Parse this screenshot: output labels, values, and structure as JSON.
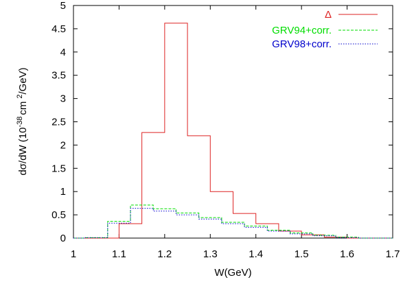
{
  "chart_data": {
    "type": "line",
    "step": true,
    "xlabel": "W(GeV)",
    "ylabel": {
      "prefix": "dσ/dW (10",
      "exp1": "-38",
      "mid": "cm",
      "exp2": "2",
      "suffix": "/GeV)"
    },
    "xlim": [
      1.0,
      1.7
    ],
    "ylim": [
      0,
      5
    ],
    "xticks": [
      "1",
      "1.1",
      "1.2",
      "1.3",
      "1.4",
      "1.5",
      "1.6",
      "1.7"
    ],
    "yticks": [
      "0",
      "0.5",
      "1",
      "1.5",
      "2",
      "2.5",
      "3",
      "3.5",
      "4",
      "4.5",
      "5"
    ],
    "grid": false,
    "legend_position": "top-right",
    "series": [
      {
        "name": "Δ",
        "color": "#dd2222",
        "dash": "solid",
        "edges": [
          1.0,
          1.05,
          1.1,
          1.15,
          1.2,
          1.25,
          1.3,
          1.35,
          1.4,
          1.45,
          1.5,
          1.55,
          1.6,
          1.65,
          1.7
        ],
        "values": [
          0.0,
          0.0,
          0.31,
          2.27,
          4.62,
          2.2,
          1.0,
          0.53,
          0.31,
          0.15,
          0.07,
          0.02,
          0.0,
          0.0
        ]
      },
      {
        "name": "GRV94+corr.",
        "color": "#00dd00",
        "dash": "4,2",
        "edges": [
          1.0,
          1.025,
          1.075,
          1.125,
          1.175,
          1.225,
          1.275,
          1.325,
          1.375,
          1.425,
          1.475,
          1.525,
          1.575,
          1.625,
          1.7
        ],
        "values": [
          0.0,
          0.01,
          0.36,
          0.71,
          0.63,
          0.54,
          0.44,
          0.34,
          0.26,
          0.17,
          0.11,
          0.06,
          0.02,
          0.0
        ]
      },
      {
        "name": "GRV98+corr.",
        "color": "#0000cc",
        "dash": "1.5,2",
        "edges": [
          1.0,
          1.025,
          1.075,
          1.125,
          1.175,
          1.225,
          1.275,
          1.325,
          1.375,
          1.425,
          1.475,
          1.525,
          1.575,
          1.625,
          1.7
        ],
        "values": [
          0.0,
          0.01,
          0.32,
          0.64,
          0.58,
          0.5,
          0.41,
          0.31,
          0.23,
          0.15,
          0.09,
          0.05,
          0.01,
          0.0
        ]
      }
    ]
  }
}
